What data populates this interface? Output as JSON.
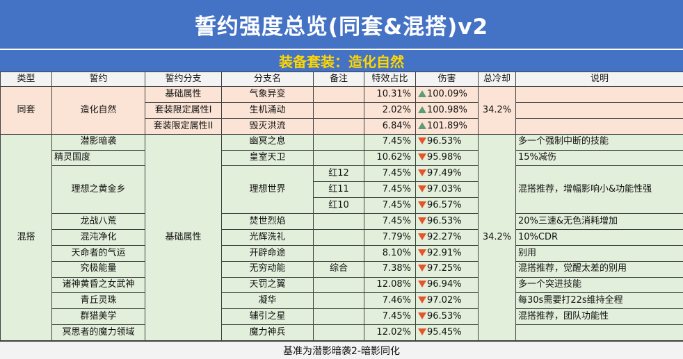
{
  "title": "誓约强度总览(同套&混搭)v2",
  "subtitle": "装备套装：造化自然",
  "headers": [
    "类型",
    "誓约",
    "誓约分支",
    "分支名",
    "备注",
    "特效占比",
    "伤害",
    "总冷却",
    "说明"
  ],
  "tongtao": {
    "type": "同套",
    "pledge": "造化自然",
    "cooldown": "34.2%",
    "rows": [
      {
        "branch": "基础属性",
        "name": "气象异变",
        "pct": "10.31%",
        "dmg": "100.09%",
        "trend": "up"
      },
      {
        "branch": "套装限定属性I",
        "name": "生机涌动",
        "pct": "2.02%",
        "dmg": "100.98%",
        "trend": "up"
      },
      {
        "branch": "套装限定属性II",
        "name": "毁灭洪流",
        "pct": "6.84%",
        "dmg": "101.89%",
        "trend": "up"
      }
    ]
  },
  "hunda": {
    "type": "混搭",
    "branch": "基础属性",
    "cooldown": "34.2%",
    "r1": {
      "pledge": "潜影暗袭",
      "name": "幽冥之息",
      "pct": "7.45%",
      "dmg": "96.53%",
      "desc": "多一个强制中断的技能"
    },
    "r2": {
      "pledge": "精灵国度",
      "name": "皇室天卫",
      "pct": "10.62%",
      "dmg": "95.98%",
      "desc": "15%减伤"
    },
    "lx": {
      "pledge": "理想之黄金乡",
      "name": "理想世界",
      "desc": "混搭推荐，增幅影响小&功能性强",
      "sub": [
        {
          "note": "红12",
          "pct": "7.45%",
          "dmg": "97.49%"
        },
        {
          "note": "红11",
          "pct": "7.45%",
          "dmg": "97.03%"
        },
        {
          "note": "红10",
          "pct": "7.45%",
          "dmg": "96.57%"
        }
      ]
    },
    "r6": {
      "pledge": "龙战八荒",
      "name": "焚世烈焰",
      "pct": "7.45%",
      "dmg": "96.53%",
      "desc": "20%三速&无色消耗增加"
    },
    "r7": {
      "pledge": "混沌净化",
      "name": "光辉洗礼",
      "pct": "7.79%",
      "dmg": "92.27%",
      "desc": "10%CDR"
    },
    "r8": {
      "pledge": "天命者的气运",
      "name": "开辟命途",
      "pct": "8.10%",
      "dmg": "92.91%",
      "desc": "别用"
    },
    "r9": {
      "pledge": "究极能量",
      "name": "无穷动能",
      "note": "综合",
      "pct": "7.38%",
      "dmg": "97.25%",
      "desc": "混搭推荐，觉醒太差的别用"
    },
    "r10": {
      "pledge": "诸神黄昏之女武神",
      "name": "天罚之翼",
      "pct": "12.08%",
      "dmg": "96.94%",
      "desc": "多一个突进技能"
    },
    "r11": {
      "pledge": "青丘灵珠",
      "name": "凝华",
      "pct": "7.46%",
      "dmg": "97.02%",
      "desc": "每30s需要打22s维持全程"
    },
    "r12": {
      "pledge": "群猎美学",
      "name": "辅引之星",
      "pct": "7.45%",
      "dmg": "96.53%",
      "desc": "混搭推荐，团队功能性"
    },
    "r13": {
      "pledge": "冥思者的魔力领域",
      "name": "魔力神兵",
      "pct": "12.02%",
      "dmg": "95.45%",
      "desc": ""
    }
  },
  "footer": "基准为潜影暗袭2-暗影同化",
  "colors": {
    "header_blue": "#4472c4",
    "subtitle_gold": "#ffd700",
    "pink": "#fbe4d5",
    "green": "#e2efda",
    "up": "#5b9c76",
    "down": "#e8542a"
  },
  "icons": {
    "up": "triangle-up-icon",
    "down": "triangle-down-icon"
  }
}
